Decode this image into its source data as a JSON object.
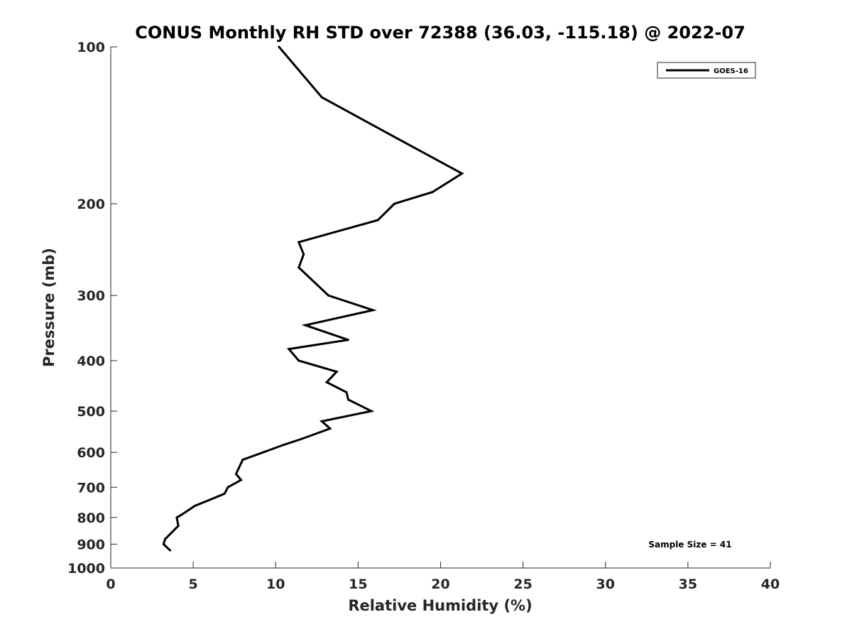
{
  "chart_data": {
    "type": "line",
    "title": "CONUS Monthly RH STD over 72388 (36.03, -115.18) @ 2022-07",
    "xlabel": "Relative Humidity (%)",
    "ylabel": "Pressure (mb)",
    "xlim": [
      0,
      40
    ],
    "ylim": [
      100,
      1000
    ],
    "y_scale": "log",
    "y_reversed": true,
    "grid": false,
    "legend_position": "top-right",
    "x_ticks": [
      0,
      5,
      10,
      15,
      20,
      25,
      30,
      35,
      40
    ],
    "y_ticks": [
      100,
      200,
      300,
      400,
      500,
      600,
      700,
      800,
      900,
      1000
    ],
    "annotation": "Sample Size = 41",
    "series": [
      {
        "name": "GOES-16",
        "color": "#000000",
        "points": [
          [
            10.2,
            100
          ],
          [
            12.8,
            125
          ],
          [
            17.4,
            150
          ],
          [
            21.3,
            175
          ],
          [
            19.5,
            190
          ],
          [
            17.2,
            200
          ],
          [
            16.2,
            215
          ],
          [
            11.4,
            237
          ],
          [
            11.7,
            250
          ],
          [
            11.4,
            265
          ],
          [
            13.2,
            300
          ],
          [
            15.9,
            320
          ],
          [
            11.8,
            342
          ],
          [
            14.4,
            365
          ],
          [
            10.8,
            380
          ],
          [
            11.4,
            400
          ],
          [
            13.7,
            420
          ],
          [
            13.1,
            440
          ],
          [
            14.3,
            460
          ],
          [
            14.4,
            475
          ],
          [
            15.8,
            500
          ],
          [
            12.8,
            523
          ],
          [
            13.3,
            540
          ],
          [
            11.6,
            565
          ],
          [
            10.5,
            580
          ],
          [
            8.0,
            620
          ],
          [
            7.6,
            660
          ],
          [
            7.9,
            678
          ],
          [
            7.1,
            700
          ],
          [
            6.9,
            720
          ],
          [
            6.0,
            740
          ],
          [
            5.1,
            760
          ],
          [
            4.3,
            790
          ],
          [
            4.0,
            800
          ],
          [
            4.1,
            830
          ],
          [
            3.3,
            880
          ],
          [
            3.2,
            900
          ],
          [
            3.6,
            925
          ]
        ]
      }
    ]
  }
}
